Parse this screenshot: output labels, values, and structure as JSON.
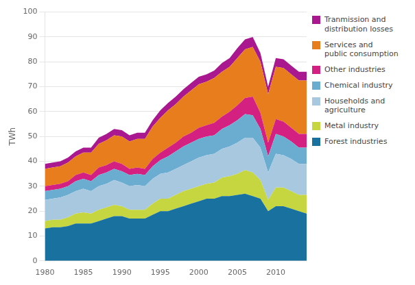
{
  "chart_data": {
    "type": "area",
    "stacked": true,
    "grid": true,
    "legend": "right",
    "ylabel": "TWh",
    "x": [
      1980,
      1981,
      1982,
      1983,
      1984,
      1985,
      1986,
      1987,
      1988,
      1989,
      1990,
      1991,
      1992,
      1993,
      1994,
      1995,
      1996,
      1997,
      1998,
      1999,
      2000,
      2001,
      2002,
      2003,
      2004,
      2005,
      2006,
      2007,
      2008,
      2009,
      2010,
      2011,
      2012,
      2013,
      2014
    ],
    "xlim": [
      1980,
      2014
    ],
    "xticks": [
      1980,
      1985,
      1990,
      1995,
      2000,
      2005,
      2010
    ],
    "ylim": [
      0,
      100
    ],
    "yticks": [
      0,
      10,
      20,
      30,
      40,
      50,
      60,
      70,
      80,
      90,
      100
    ],
    "series": [
      {
        "name": "Forest industries",
        "color": "#1971a0",
        "values": [
          13.0,
          13.5,
          13.5,
          14.0,
          15.0,
          15.0,
          15.0,
          16.0,
          17.0,
          18.0,
          18.0,
          17.0,
          17.0,
          17.0,
          18.5,
          20.0,
          20.0,
          21.0,
          22.0,
          23.0,
          24.0,
          25.0,
          25.0,
          26.0,
          26.0,
          26.5,
          27.0,
          26.0,
          25.0,
          20.0,
          22.0,
          22.0,
          21.0,
          20.0,
          19.0
        ]
      },
      {
        "name": "Metal industry",
        "color": "#c5d640",
        "values": [
          3.0,
          3.0,
          3.0,
          3.5,
          4.0,
          4.5,
          4.0,
          4.5,
          4.5,
          4.5,
          4.0,
          3.5,
          3.5,
          3.5,
          4.5,
          5.0,
          5.0,
          5.5,
          6.0,
          6.0,
          6.0,
          6.0,
          6.5,
          7.5,
          8.0,
          8.5,
          9.5,
          9.5,
          7.5,
          4.5,
          7.5,
          7.5,
          7.0,
          6.5,
          7.5
        ]
      },
      {
        "name": "Households and\nagriculture",
        "color": "#a8c8e0",
        "values": [
          8.5,
          8.5,
          9.0,
          9.0,
          9.0,
          9.5,
          9.0,
          9.5,
          9.5,
          10.0,
          9.5,
          9.5,
          10.0,
          9.5,
          10.0,
          10.0,
          10.5,
          10.5,
          10.5,
          11.0,
          11.5,
          11.5,
          11.5,
          11.5,
          12.0,
          12.5,
          13.0,
          14.0,
          13.0,
          11.0,
          13.5,
          13.0,
          13.0,
          12.5,
          12.5
        ]
      },
      {
        "name": "Chemical industry",
        "color": "#6badd0",
        "values": [
          3.5,
          3.5,
          3.5,
          3.5,
          4.0,
          4.0,
          4.0,
          4.5,
          4.5,
          4.5,
          4.5,
          4.5,
          4.5,
          4.5,
          5.0,
          5.5,
          6.5,
          7.0,
          7.5,
          7.5,
          7.5,
          7.5,
          7.5,
          8.0,
          8.5,
          9.0,
          9.5,
          9.0,
          7.5,
          6.5,
          8.0,
          7.5,
          7.0,
          6.5,
          6.5
        ]
      },
      {
        "name": "Other industries",
        "color": "#d42080",
        "values": [
          2.0,
          2.0,
          2.0,
          2.0,
          2.5,
          2.5,
          2.5,
          3.0,
          3.0,
          3.0,
          3.0,
          2.5,
          2.5,
          2.5,
          3.0,
          3.0,
          3.5,
          3.5,
          4.0,
          4.0,
          4.5,
          4.5,
          5.0,
          5.0,
          5.5,
          6.0,
          6.5,
          7.5,
          6.5,
          5.5,
          6.0,
          6.0,
          5.5,
          5.5,
          5.5
        ]
      },
      {
        "name": "Services and\npublic consumption",
        "color": "#e87d1e",
        "values": [
          7.0,
          7.0,
          7.0,
          7.5,
          7.5,
          8.0,
          9.0,
          9.5,
          10.0,
          10.5,
          11.0,
          11.0,
          11.5,
          12.0,
          13.0,
          14.0,
          15.0,
          15.5,
          16.0,
          17.0,
          17.5,
          17.5,
          18.0,
          18.0,
          18.0,
          19.0,
          19.5,
          20.0,
          20.5,
          19.5,
          21.0,
          21.5,
          21.5,
          21.5,
          21.5
        ]
      },
      {
        "name": "Tranmission and\ndistribution losses",
        "color": "#aa1890",
        "values": [
          2.0,
          2.0,
          2.0,
          2.0,
          2.0,
          2.0,
          2.0,
          2.5,
          2.5,
          2.5,
          2.5,
          2.5,
          2.5,
          2.5,
          2.5,
          3.0,
          3.0,
          3.0,
          3.0,
          3.0,
          3.0,
          3.0,
          3.0,
          3.5,
          3.5,
          4.0,
          4.0,
          4.0,
          3.5,
          3.0,
          3.5,
          3.5,
          3.5,
          3.5,
          3.5
        ]
      }
    ]
  }
}
